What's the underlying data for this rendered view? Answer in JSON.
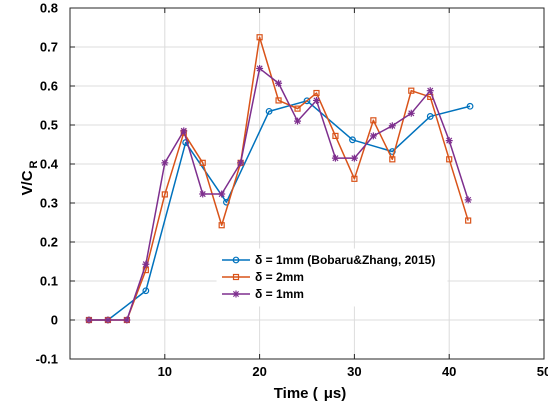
{
  "chart_data": {
    "type": "line",
    "xlabel": "Time (  μs)",
    "ylabel": "V/C",
    "ylabel_sub": "R",
    "xlim": [
      0,
      50
    ],
    "ylim": [
      -0.1,
      0.8
    ],
    "xticks": [
      10,
      20,
      30,
      40,
      50
    ],
    "yticks": [
      -0.1,
      0,
      0.1,
      0.2,
      0.3,
      0.4,
      0.5,
      0.6,
      0.7,
      0.8
    ],
    "xtick_labels": [
      "10",
      "20",
      "30",
      "40",
      "50"
    ],
    "ytick_labels": [
      "-0.1",
      "0",
      "0.1",
      "0.2",
      "0.3",
      "0.4",
      "0.5",
      "0.6",
      "0.7",
      "0.8"
    ],
    "grid": true,
    "legend_position": "lower-center",
    "series": [
      {
        "name": "δ = 1mm (Bobaru&Zhang, 2015)",
        "color": "#0072bd",
        "marker": "circle",
        "x": [
          2,
          4,
          8,
          12.2,
          16.5,
          21,
          25,
          29.8,
          34,
          38,
          42.2
        ],
        "y": [
          0,
          0,
          0.075,
          0.455,
          0.302,
          0.535,
          0.562,
          0.462,
          0.432,
          0.522,
          0.548
        ]
      },
      {
        "name": "δ = 2mm",
        "color": "#d95319",
        "marker": "square",
        "x": [
          2,
          4,
          6,
          8,
          10,
          12,
          14,
          16,
          18,
          20,
          22,
          24,
          26,
          28,
          30,
          32,
          34,
          36,
          38,
          40,
          42
        ],
        "y": [
          0,
          0,
          0,
          0.128,
          0.322,
          0.48,
          0.403,
          0.243,
          0.403,
          0.725,
          0.563,
          0.542,
          0.582,
          0.472,
          0.362,
          0.512,
          0.412,
          0.588,
          0.572,
          0.412,
          0.255
        ]
      },
      {
        "name": "δ = 1mm",
        "color": "#7e2f8e",
        "marker": "star",
        "x": [
          2,
          4,
          6,
          8,
          10,
          12,
          14,
          16,
          18,
          20,
          22,
          24,
          26,
          28,
          30,
          32,
          34,
          36,
          38,
          40,
          42
        ],
        "y": [
          0,
          0,
          0,
          0.143,
          0.403,
          0.485,
          0.323,
          0.323,
          0.403,
          0.645,
          0.607,
          0.51,
          0.563,
          0.415,
          0.415,
          0.472,
          0.498,
          0.53,
          0.588,
          0.46,
          0.308
        ]
      }
    ]
  }
}
